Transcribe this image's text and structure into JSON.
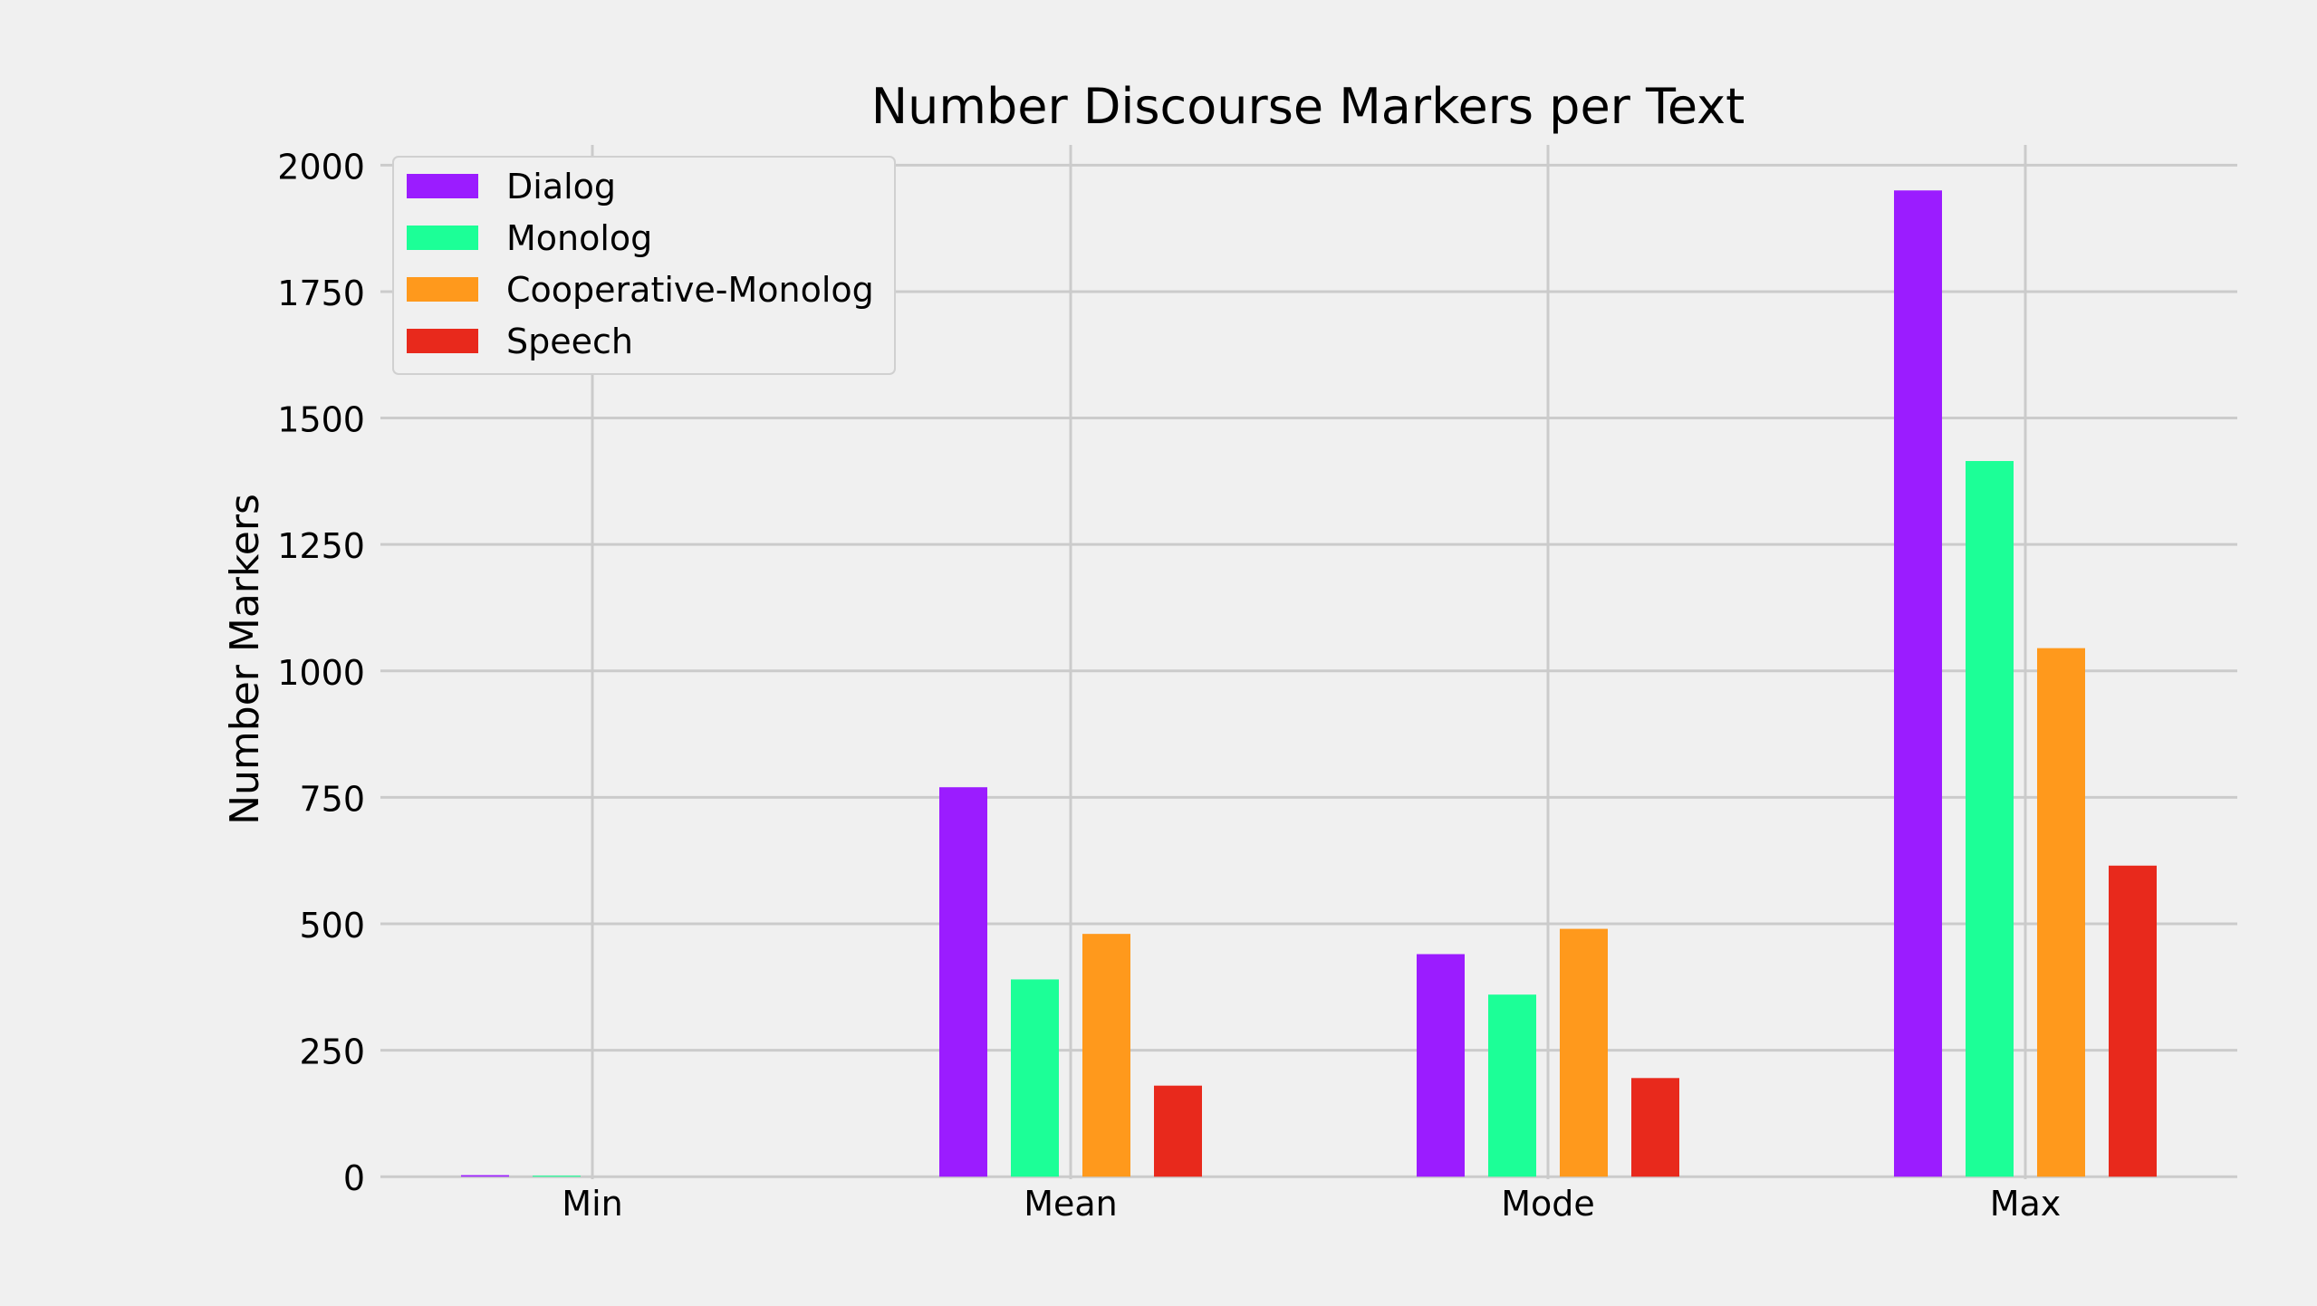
{
  "chart_data": {
    "type": "bar",
    "title": "Number Discourse Markers per Text",
    "xlabel": "",
    "ylabel": "Number Markers",
    "categories": [
      "Min",
      "Mean",
      "Mode",
      "Max"
    ],
    "ylim": [
      -5,
      2040
    ],
    "yticks": [
      0,
      250,
      500,
      750,
      1000,
      1250,
      1500,
      1750,
      2000
    ],
    "grid": true,
    "legend_position": "top-left",
    "series": [
      {
        "name": "Dialog",
        "color": "#9b1cff",
        "values": [
          3,
          770,
          440,
          1950
        ]
      },
      {
        "name": "Monolog",
        "color": "#1cff97",
        "values": [
          2,
          390,
          360,
          1415
        ]
      },
      {
        "name": "Cooperative-Monolog",
        "color": "#ff991c",
        "values": [
          0,
          480,
          490,
          1045
        ]
      },
      {
        "name": "Speech",
        "color": "#e8291c",
        "values": [
          0,
          180,
          195,
          615
        ]
      }
    ]
  }
}
